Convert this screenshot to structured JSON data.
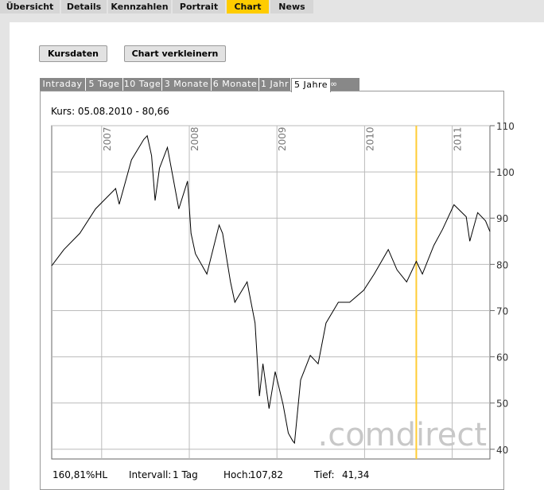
{
  "tabs": [
    "Übersicht",
    "Details",
    "Kennzahlen",
    "Portrait",
    "Chart",
    "News"
  ],
  "active_tab": 4,
  "buttons": [
    "Kursdaten",
    "Chart verkleinern"
  ],
  "range_tabs": [
    "Intraday",
    "5 Tage",
    "10 Tage",
    "3 Monate",
    "6 Monate",
    "1 Jahr",
    "5 Jahre",
    "∞"
  ],
  "active_range_tab": 6,
  "chart_data": {
    "type": "line",
    "title": "Kurs: 05.08.2010 - 80,66",
    "color": "#000000",
    "x": [
      2006.43,
      2006.57,
      2006.75,
      2006.93,
      2007.16,
      2007.2,
      2007.34,
      2007.48,
      2007.52,
      2007.57,
      2007.61,
      2007.66,
      2007.75,
      2007.82,
      2007.88,
      2007.98,
      2008.02,
      2008.07,
      2008.2,
      2008.34,
      2008.38,
      2008.47,
      2008.52,
      2008.66,
      2008.75,
      2008.8,
      2008.84,
      2008.91,
      2008.98,
      2009.07,
      2009.13,
      2009.18,
      2009.2,
      2009.27,
      2009.38,
      2009.47,
      2009.56,
      2009.7,
      2009.83,
      2009.99,
      2010.11,
      2010.27,
      2010.37,
      2010.48,
      2010.59,
      2010.66,
      2010.79,
      2010.89,
      2011.02,
      2011.16,
      2011.2,
      2011.29,
      2011.38,
      2011.43
    ],
    "values": [
      79.7,
      83.2,
      86.7,
      92,
      96.4,
      93,
      102.6,
      107,
      107.82,
      103.5,
      93.8,
      100.8,
      105.3,
      98.2,
      92,
      98,
      86.7,
      82.3,
      77.9,
      88.5,
      86.7,
      76.2,
      71.8,
      76.2,
      67.3,
      51.5,
      58.5,
      48.8,
      56.8,
      49.7,
      43.5,
      41.8,
      41.34,
      55,
      60.3,
      58.5,
      67.3,
      71.8,
      71.8,
      74.4,
      77.9,
      83.2,
      78.8,
      76.2,
      80.66,
      77.9,
      84.1,
      87.6,
      92.9,
      90.3,
      85,
      91.2,
      89.4,
      87.1
    ],
    "xlim": [
      2006.43,
      2011.43
    ],
    "xticks": [
      2007,
      2008,
      2009,
      2010,
      2011
    ],
    "ylim": [
      37.9,
      110
    ],
    "yticks": [
      40,
      50,
      60,
      70,
      80,
      90,
      100,
      110
    ],
    "grid": true,
    "marker_x": 2010.59,
    "marker_color": "#ffcc33"
  },
  "watermark": ".comdirect",
  "stats": [
    "160,81%HL",
    "Intervall:",
    "1 Tag",
    "Hoch:",
    "107,82",
    "Tief:",
    "41,34"
  ]
}
